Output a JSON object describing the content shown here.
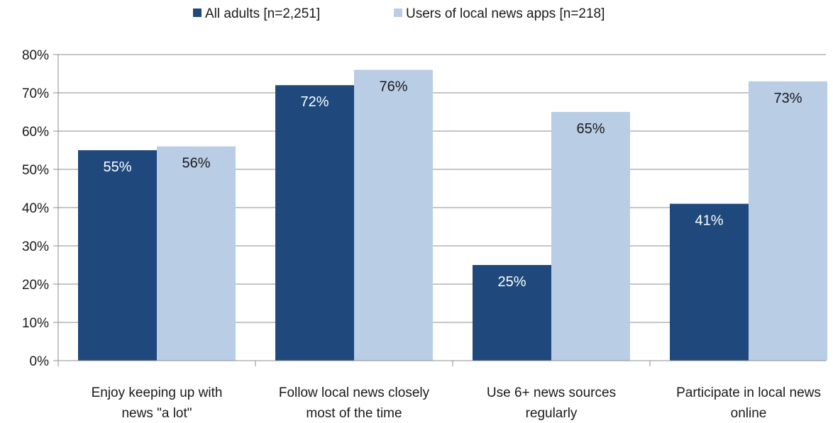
{
  "chart_data": {
    "type": "bar",
    "categories": [
      [
        "Enjoy keeping up with",
        "news \"a lot\""
      ],
      [
        "Follow local news closely",
        "most of the time"
      ],
      [
        "Use 6+ news sources",
        "regularly"
      ],
      [
        "Participate in local news",
        "online"
      ]
    ],
    "series": [
      {
        "name": "All adults [n=2,251]",
        "values": [
          55,
          72,
          25,
          41
        ],
        "labels": [
          "55%",
          "72%",
          "25%",
          "41%"
        ],
        "color": "#1f497d",
        "label_color": "#ffffff"
      },
      {
        "name": "Users of local news apps [n=218]",
        "values": [
          56,
          76,
          65,
          73
        ],
        "labels": [
          "56%",
          "76%",
          "65%",
          "73%"
        ],
        "color": "#b9cde5",
        "label_color": "#1a1a1a"
      }
    ],
    "ylim": [
      0,
      80
    ],
    "yticks": [
      "0%",
      "10%",
      "20%",
      "30%",
      "40%",
      "50%",
      "60%",
      "70%",
      "80%"
    ],
    "grid": true,
    "legend": "top-center",
    "title": "",
    "xlabel": "",
    "ylabel": ""
  }
}
